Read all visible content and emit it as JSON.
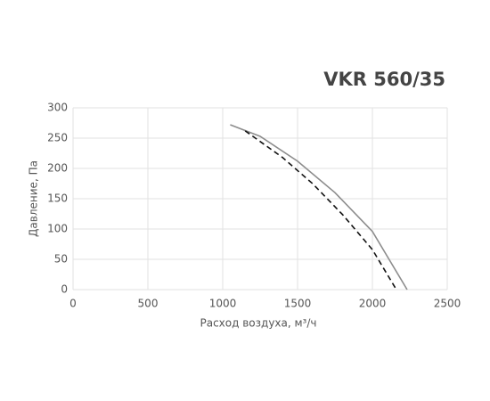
{
  "chart_data": {
    "type": "line",
    "title": "VKR 560/35",
    "x_label": "Расход воздуха, м³/ч",
    "y_label": "Давление, Па",
    "xlim": [
      0,
      2500
    ],
    "xticks": [
      0,
      500,
      1000,
      1500,
      2000,
      2500
    ],
    "ylim": [
      0,
      300
    ],
    "yticks": [
      0,
      50,
      100,
      150,
      200,
      250,
      300
    ],
    "grid": true,
    "series": [
      {
        "color": "#8c8c8c",
        "dash": false,
        "x": [
          1050,
          1250,
          1500,
          1750,
          2000,
          2232
        ],
        "values": [
          272,
          253,
          212,
          160,
          96,
          0
        ]
      },
      {
        "color": "#111111",
        "dash": true,
        "x": [
          1150,
          1400,
          1600,
          1800,
          2000,
          2160
        ],
        "values": [
          262,
          218,
          175,
          124,
          66,
          0
        ]
      }
    ]
  }
}
